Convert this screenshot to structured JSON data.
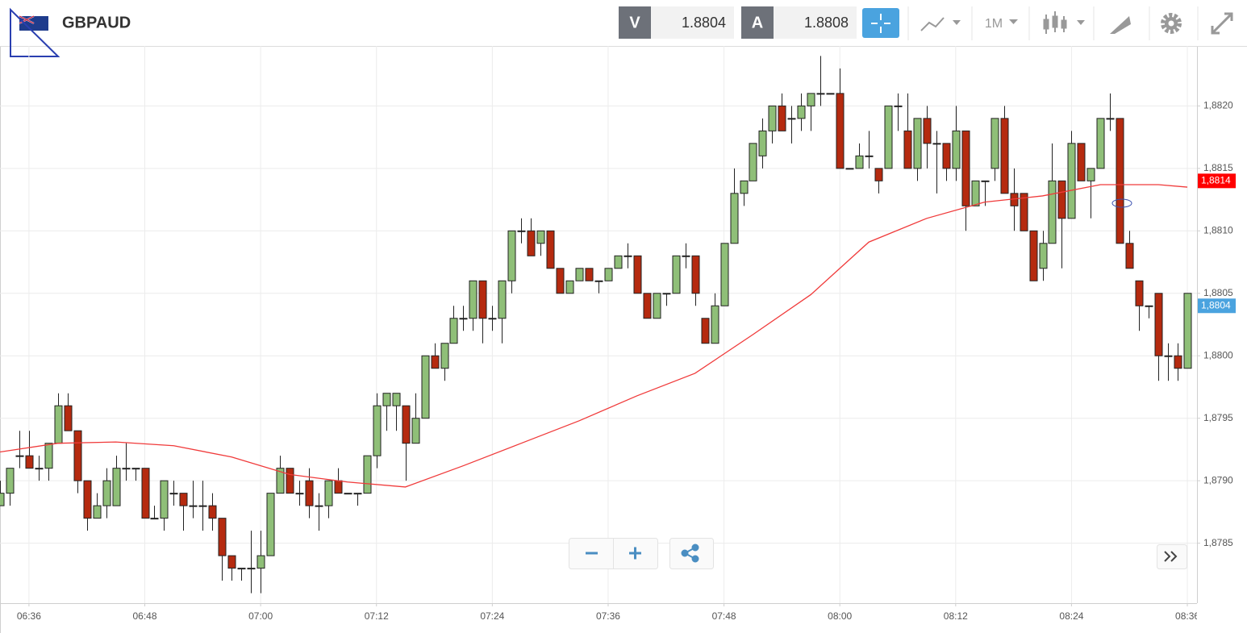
{
  "toolbar": {
    "symbol": "GBPAUD",
    "bid_label": "V",
    "bid": 1.8804,
    "ask_label": "A",
    "ask": 1.8808,
    "timeframe": "1M"
  },
  "chart_data": {
    "type": "candlestick",
    "x": [
      "06:33",
      "06:34",
      "06:35",
      "06:36",
      "06:37",
      "06:38",
      "06:39",
      "06:40",
      "06:41",
      "06:42",
      "06:43",
      "06:44",
      "06:45",
      "06:46",
      "06:47",
      "06:48",
      "06:49",
      "06:50",
      "06:51",
      "06:52",
      "06:53",
      "06:54",
      "06:55",
      "06:56",
      "06:57",
      "06:58",
      "06:59",
      "07:00",
      "07:01",
      "07:02",
      "07:03",
      "07:04",
      "07:05",
      "07:06",
      "07:07",
      "07:08",
      "07:09",
      "07:10",
      "07:11",
      "07:12",
      "07:13",
      "07:14",
      "07:15",
      "07:16",
      "07:17",
      "07:18",
      "07:19",
      "07:20",
      "07:21",
      "07:22",
      "07:23",
      "07:24",
      "07:25",
      "07:26",
      "07:27",
      "07:28",
      "07:29",
      "07:30",
      "07:31",
      "07:32",
      "07:33",
      "07:34",
      "07:35",
      "07:36",
      "07:37",
      "07:38",
      "07:39",
      "07:40",
      "07:41",
      "07:42",
      "07:43",
      "07:44",
      "07:45",
      "07:46",
      "07:47",
      "07:48",
      "07:49",
      "07:50",
      "07:51",
      "07:52",
      "07:53",
      "07:54",
      "07:55",
      "07:56",
      "07:57",
      "07:58",
      "07:59",
      "08:00",
      "08:01",
      "08:02",
      "08:03",
      "08:04",
      "08:05",
      "08:06",
      "08:07",
      "08:08",
      "08:09",
      "08:10",
      "08:11",
      "08:12",
      "08:13",
      "08:14",
      "08:15",
      "08:16",
      "08:17",
      "08:18",
      "08:19",
      "08:20",
      "08:21",
      "08:22",
      "08:23",
      "08:24",
      "08:25",
      "08:26",
      "08:27",
      "08:28",
      "08:29",
      "08:30",
      "08:31",
      "08:32",
      "08:33",
      "08:34",
      "08:35",
      "08:36"
    ],
    "open": [
      1.8788,
      1.8789,
      1.8792,
      1.8792,
      1.8791,
      1.8791,
      1.8793,
      1.8796,
      1.8794,
      1.879,
      1.8787,
      1.8788,
      1.8788,
      1.8791,
      1.8791,
      1.8791,
      1.8787,
      1.8787,
      1.8789,
      1.8789,
      1.8788,
      1.8788,
      1.8788,
      1.8787,
      1.8784,
      1.8783,
      1.8783,
      1.8783,
      1.8784,
      1.8789,
      1.8791,
      1.8789,
      1.879,
      1.8788,
      1.8788,
      1.879,
      1.8789,
      1.8789,
      1.8789,
      1.8792,
      1.8796,
      1.8796,
      1.8796,
      1.8793,
      1.8795,
      1.88,
      1.8799,
      1.8801,
      1.8803,
      1.8803,
      1.8806,
      1.8803,
      1.8803,
      1.8806,
      1.881,
      1.881,
      1.8809,
      1.881,
      1.8807,
      1.8805,
      1.8806,
      1.8807,
      1.8806,
      1.8806,
      1.8807,
      1.8808,
      1.8808,
      1.8805,
      1.8803,
      1.8805,
      1.8805,
      1.8808,
      1.8808,
      1.8803,
      1.8801,
      1.8804,
      1.8809,
      1.8813,
      1.8814,
      1.8816,
      1.8818,
      1.882,
      1.8819,
      1.8819,
      1.882,
      1.8821,
      1.8821,
      1.8821,
      1.8815,
      1.8815,
      1.8816,
      1.8815,
      1.8815,
      1.882,
      1.8818,
      1.8815,
      1.8819,
      1.8817,
      1.8817,
      1.8815,
      1.8818,
      1.8812,
      1.8814,
      1.8815,
      1.8819,
      1.8813,
      1.8813,
      1.881,
      1.8807,
      1.8809,
      1.8814,
      1.8811,
      1.8817,
      1.8814,
      1.8815,
      1.8819,
      1.8819,
      1.8809,
      1.8806,
      1.8804,
      1.8805,
      1.88,
      1.88,
      1.8799
    ],
    "high": [
      1.879,
      1.8791,
      1.8794,
      1.8794,
      1.8792,
      1.8793,
      1.8797,
      1.8797,
      1.8794,
      1.879,
      1.8789,
      1.8791,
      1.8792,
      1.8793,
      1.8791,
      1.8791,
      1.8788,
      1.879,
      1.879,
      1.8789,
      1.879,
      1.879,
      1.8789,
      1.8787,
      1.8784,
      1.8783,
      1.8786,
      1.8786,
      1.8789,
      1.8792,
      1.8791,
      1.879,
      1.8791,
      1.8789,
      1.879,
      1.8791,
      1.8789,
      1.8789,
      1.8792,
      1.8797,
      1.8797,
      1.8797,
      1.8796,
      1.8797,
      1.88,
      1.8801,
      1.8801,
      1.8804,
      1.8804,
      1.8806,
      1.8806,
      1.8804,
      1.8806,
      1.881,
      1.8811,
      1.8811,
      1.881,
      1.881,
      1.8807,
      1.8806,
      1.8807,
      1.8807,
      1.8806,
      1.8807,
      1.8808,
      1.8809,
      1.8808,
      1.8805,
      1.8805,
      1.8805,
      1.8808,
      1.8809,
      1.8808,
      1.8803,
      1.8805,
      1.8809,
      1.8815,
      1.8814,
      1.8817,
      1.8819,
      1.882,
      1.8821,
      1.882,
      1.8821,
      1.8821,
      1.8824,
      1.8821,
      1.8823,
      1.8815,
      1.8817,
      1.8818,
      1.8815,
      1.882,
      1.8821,
      1.8821,
      1.8819,
      1.882,
      1.8818,
      1.8817,
      1.882,
      1.8818,
      1.8814,
      1.8814,
      1.8819,
      1.882,
      1.8815,
      1.8813,
      1.881,
      1.881,
      1.8817,
      1.8814,
      1.8818,
      1.8817,
      1.8815,
      1.8819,
      1.8821,
      1.8819,
      1.881,
      1.8806,
      1.8804,
      1.8805,
      1.8801,
      1.8801,
      1.8805
    ],
    "low": [
      1.8788,
      1.8788,
      1.8791,
      1.8791,
      1.879,
      1.879,
      1.8793,
      1.8794,
      1.8789,
      1.8786,
      1.8787,
      1.8787,
      1.8788,
      1.879,
      1.879,
      1.8787,
      1.8787,
      1.8786,
      1.8788,
      1.8786,
      1.8787,
      1.8786,
      1.8786,
      1.8782,
      1.8782,
      1.8782,
      1.8781,
      1.8781,
      1.8784,
      1.8789,
      1.8789,
      1.8788,
      1.8787,
      1.8786,
      1.8787,
      1.8789,
      1.8789,
      1.8788,
      1.8789,
      1.8791,
      1.8794,
      1.8794,
      1.879,
      1.8793,
      1.8795,
      1.8799,
      1.8798,
      1.8801,
      1.8802,
      1.8802,
      1.8801,
      1.8802,
      1.8801,
      1.8805,
      1.8809,
      1.8808,
      1.8808,
      1.8807,
      1.8805,
      1.8805,
      1.8806,
      1.8806,
      1.8805,
      1.8806,
      1.8807,
      1.8807,
      1.8805,
      1.8803,
      1.8803,
      1.8804,
      1.8805,
      1.8807,
      1.8804,
      1.8801,
      1.8801,
      1.8804,
      1.8809,
      1.8812,
      1.8814,
      1.8815,
      1.8817,
      1.8818,
      1.8817,
      1.8818,
      1.8818,
      1.882,
      1.8821,
      1.8815,
      1.8815,
      1.8815,
      1.8815,
      1.8813,
      1.8815,
      1.8818,
      1.8815,
      1.8814,
      1.8815,
      1.8813,
      1.8814,
      1.8814,
      1.881,
      1.8812,
      1.8812,
      1.8814,
      1.8813,
      1.881,
      1.881,
      1.8806,
      1.8806,
      1.8809,
      1.8807,
      1.8811,
      1.8814,
      1.8811,
      1.8815,
      1.8818,
      1.8809,
      1.8807,
      1.8802,
      1.8803,
      1.8798,
      1.8798,
      1.8798,
      1.8799
    ],
    "close": [
      1.8789,
      1.8791,
      1.8792,
      1.8791,
      1.8791,
      1.8793,
      1.8796,
      1.8794,
      1.879,
      1.8787,
      1.8788,
      1.879,
      1.8791,
      1.8791,
      1.8791,
      1.8787,
      1.8787,
      1.879,
      1.8789,
      1.8788,
      1.8788,
      1.8788,
      1.8787,
      1.8784,
      1.8783,
      1.8783,
      1.8783,
      1.8784,
      1.8789,
      1.8791,
      1.8789,
      1.8789,
      1.8788,
      1.8788,
      1.879,
      1.8789,
      1.8789,
      1.8789,
      1.8792,
      1.8796,
      1.8797,
      1.8797,
      1.8793,
      1.8795,
      1.88,
      1.8799,
      1.8801,
      1.8803,
      1.8803,
      1.8806,
      1.8803,
      1.8803,
      1.8806,
      1.881,
      1.881,
      1.8808,
      1.881,
      1.8807,
      1.8805,
      1.8806,
      1.8807,
      1.8806,
      1.8806,
      1.8807,
      1.8808,
      1.8808,
      1.8805,
      1.8803,
      1.8805,
      1.8805,
      1.8808,
      1.8808,
      1.8805,
      1.8801,
      1.8804,
      1.8809,
      1.8813,
      1.8814,
      1.8817,
      1.8818,
      1.882,
      1.8818,
      1.8819,
      1.882,
      1.8821,
      1.8821,
      1.8821,
      1.8815,
      1.8815,
      1.8816,
      1.8816,
      1.8814,
      1.882,
      1.882,
      1.8815,
      1.8819,
      1.8817,
      1.8817,
      1.8815,
      1.8818,
      1.8812,
      1.8814,
      1.8814,
      1.8819,
      1.8813,
      1.8812,
      1.881,
      1.8806,
      1.8809,
      1.8814,
      1.8811,
      1.8817,
      1.8814,
      1.8815,
      1.8819,
      1.8819,
      1.8809,
      1.8807,
      1.8804,
      1.8804,
      1.88,
      1.88,
      1.8799,
      1.8805
    ],
    "up_color": "#8fbf78",
    "down_color": "#b52a0f",
    "line": {
      "color": "#f03a3a",
      "x": [
        "06:33",
        "06:39",
        "06:45",
        "06:51",
        "06:57",
        "07:03",
        "07:09",
        "07:15",
        "07:21",
        "07:27",
        "07:33",
        "07:39",
        "07:45",
        "07:51",
        "07:57",
        "08:03",
        "08:09",
        "08:15",
        "08:21",
        "08:27",
        "08:33",
        "08:36"
      ],
      "values": [
        1.87923,
        1.8793,
        1.87931,
        1.87928,
        1.87919,
        1.87905,
        1.87899,
        1.87895,
        1.87912,
        1.8793,
        1.87948,
        1.87968,
        1.87986,
        1.88017,
        1.88049,
        1.88091,
        1.8811,
        1.88123,
        1.88128,
        1.88137,
        1.88137,
        1.88135
      ]
    },
    "line_label": {
      "value": 1.8814,
      "label": "1,8814"
    },
    "last_label": {
      "value": 1.8804,
      "label": "1,8804"
    },
    "last_color": "#4aa3df",
    "xlim": [
      "06:33",
      "08:37"
    ],
    "xticks": [
      "06:36",
      "06:48",
      "07:00",
      "07:12",
      "07:24",
      "07:36",
      "07:48",
      "08:00",
      "08:12",
      "08:24",
      "08:36"
    ],
    "ylim": [
      1.87802,
      1.88248
    ],
    "yticks": [
      {
        "value": 1.8785,
        "label": "1,8785"
      },
      {
        "value": 1.879,
        "label": "1,8790"
      },
      {
        "value": 1.8795,
        "label": "1,8795"
      },
      {
        "value": 1.88,
        "label": "1,8800"
      },
      {
        "value": 1.8805,
        "label": "1,8805"
      },
      {
        "value": 1.881,
        "label": "1,8810"
      },
      {
        "value": 1.8815,
        "label": "1,8815"
      },
      {
        "value": 1.882,
        "label": "1,8820"
      }
    ],
    "grid": true
  }
}
